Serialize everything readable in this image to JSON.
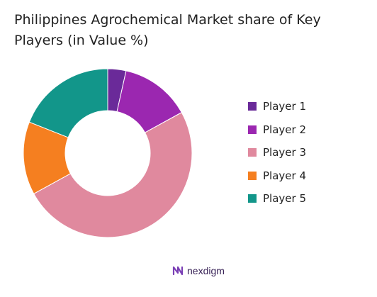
{
  "chart_data": {
    "type": "pie",
    "donut": true,
    "title": "Philippines Agrochemical Market share of Key Players (in Value %)",
    "categories": [
      "Player 1",
      "Player 2",
      "Player 3",
      "Player 4",
      "Player 5"
    ],
    "values": [
      3.5,
      13.5,
      50,
      14,
      19
    ],
    "colors": [
      "#6a2a99",
      "#9b27b0",
      "#e0899e",
      "#f57f20",
      "#12968a"
    ],
    "legend_position": "right"
  },
  "brand": {
    "name": "nexdigm",
    "icon": "nexdigm-logo-icon",
    "color": "#7a3fb5"
  }
}
